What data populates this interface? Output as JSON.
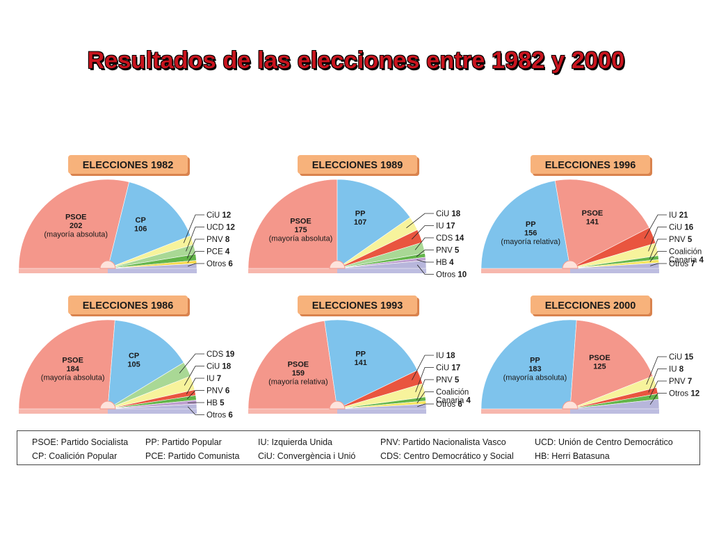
{
  "title": "Resultados de las elecciones entre 1982 y 2000",
  "colors": {
    "PSOE": "#f4978b",
    "CP": "#7ec3ec",
    "PP": "#7ec3ec",
    "CiU": "#f7f39c",
    "UCD": "#a9d895",
    "PNV": "#63b54a",
    "PCE": "#f7d84b",
    "IU": "#e9553f",
    "CDS": "#a9d895",
    "HB": "#bd9fcf",
    "Coalición Canaria": "#f6e55e",
    "Otros": "#b7b6db",
    "banner": "#f7b27b",
    "title": "#c8141e"
  },
  "chart_data": [
    {
      "type": "pie",
      "title": "ELECCIONES 1982",
      "slices": [
        {
          "party": "PSOE",
          "value": 202,
          "note": "(mayoría absoluta)"
        },
        {
          "party": "CP",
          "value": 106
        },
        {
          "party": "CiU",
          "value": 12,
          "label": "CiU 12"
        },
        {
          "party": "UCD",
          "value": 12,
          "label": "UCD 12"
        },
        {
          "party": "PNV",
          "value": 8,
          "label": "PNV 8"
        },
        {
          "party": "PCE",
          "value": 4,
          "label": "PCE 4"
        },
        {
          "party": "Otros",
          "value": 6,
          "label": "Otros 6"
        }
      ]
    },
    {
      "type": "pie",
      "title": "ELECCIONES 1989",
      "slices": [
        {
          "party": "PSOE",
          "value": 175,
          "note": "(mayoría absoluta)"
        },
        {
          "party": "PP",
          "value": 107
        },
        {
          "party": "CiU",
          "value": 18,
          "label": "CiU 18"
        },
        {
          "party": "IU",
          "value": 17,
          "label": "IU 17"
        },
        {
          "party": "CDS",
          "value": 14,
          "label": "CDS 14"
        },
        {
          "party": "PNV",
          "value": 5,
          "label": "PNV 5"
        },
        {
          "party": "HB",
          "value": 4,
          "label": "HB 4"
        },
        {
          "party": "Otros",
          "value": 10,
          "label": "Otros 10"
        }
      ]
    },
    {
      "type": "pie",
      "title": "ELECCIONES 1996",
      "slices": [
        {
          "party": "PP",
          "value": 156,
          "note": "(mayoría relativa)"
        },
        {
          "party": "PSOE",
          "value": 141
        },
        {
          "party": "IU",
          "value": 21,
          "label": "IU 21"
        },
        {
          "party": "CiU",
          "value": 16,
          "label": "CiU 16"
        },
        {
          "party": "PNV",
          "value": 5,
          "label": "PNV 5"
        },
        {
          "party": "Coalición Canaria",
          "value": 4,
          "label": "Coalición|Canaria 4"
        },
        {
          "party": "Otros",
          "value": 7,
          "label": "Otros 7"
        }
      ]
    },
    {
      "type": "pie",
      "title": "ELECCIONES 1986",
      "slices": [
        {
          "party": "PSOE",
          "value": 184,
          "note": "(mayoría absoluta)"
        },
        {
          "party": "CP",
          "value": 105
        },
        {
          "party": "CDS",
          "value": 19,
          "label": "CDS 19"
        },
        {
          "party": "CiU",
          "value": 18,
          "label": "CiU 18"
        },
        {
          "party": "IU",
          "value": 7,
          "label": "IU 7"
        },
        {
          "party": "PNV",
          "value": 6,
          "label": "PNV 6"
        },
        {
          "party": "HB",
          "value": 5,
          "label": "HB 5"
        },
        {
          "party": "Otros",
          "value": 6,
          "label": "Otros 6"
        }
      ]
    },
    {
      "type": "pie",
      "title": "ELECCIONES 1993",
      "slices": [
        {
          "party": "PSOE",
          "value": 159,
          "note": "(mayoría relativa)"
        },
        {
          "party": "PP",
          "value": 141
        },
        {
          "party": "IU",
          "value": 18,
          "label": "IU 18"
        },
        {
          "party": "CiU",
          "value": 17,
          "label": "CiU 17"
        },
        {
          "party": "PNV",
          "value": 5,
          "label": "PNV 5"
        },
        {
          "party": "Coalición Canaria",
          "value": 4,
          "label": "Coalición|Canaria 4"
        },
        {
          "party": "Otros",
          "value": 6,
          "label": "Otros 6"
        }
      ]
    },
    {
      "type": "pie",
      "title": "ELECCIONES 2000",
      "slices": [
        {
          "party": "PP",
          "value": 183,
          "note": "(mayoría absoluta)"
        },
        {
          "party": "PSOE",
          "value": 125
        },
        {
          "party": "CiU",
          "value": 15,
          "label": "CiU 15"
        },
        {
          "party": "IU",
          "value": 8,
          "label": "IU 8"
        },
        {
          "party": "PNV",
          "value": 7,
          "label": "PNV 7"
        },
        {
          "party": "Otros",
          "value": 12,
          "label": "Otros 12"
        }
      ]
    }
  ],
  "legend": [
    "PSOE: Partido Socialista",
    "CP: Coalición Popular",
    "PP: Partido Popular",
    "PCE: Partido Comunista",
    "IU: Izquierda Unida",
    "CiU: Convergència i Unió",
    "PNV: Partido Nacionalista Vasco",
    "CDS: Centro Democrático y Social",
    "UCD: Unión de Centro Democrático",
    "HB: Herri Batasuna"
  ]
}
